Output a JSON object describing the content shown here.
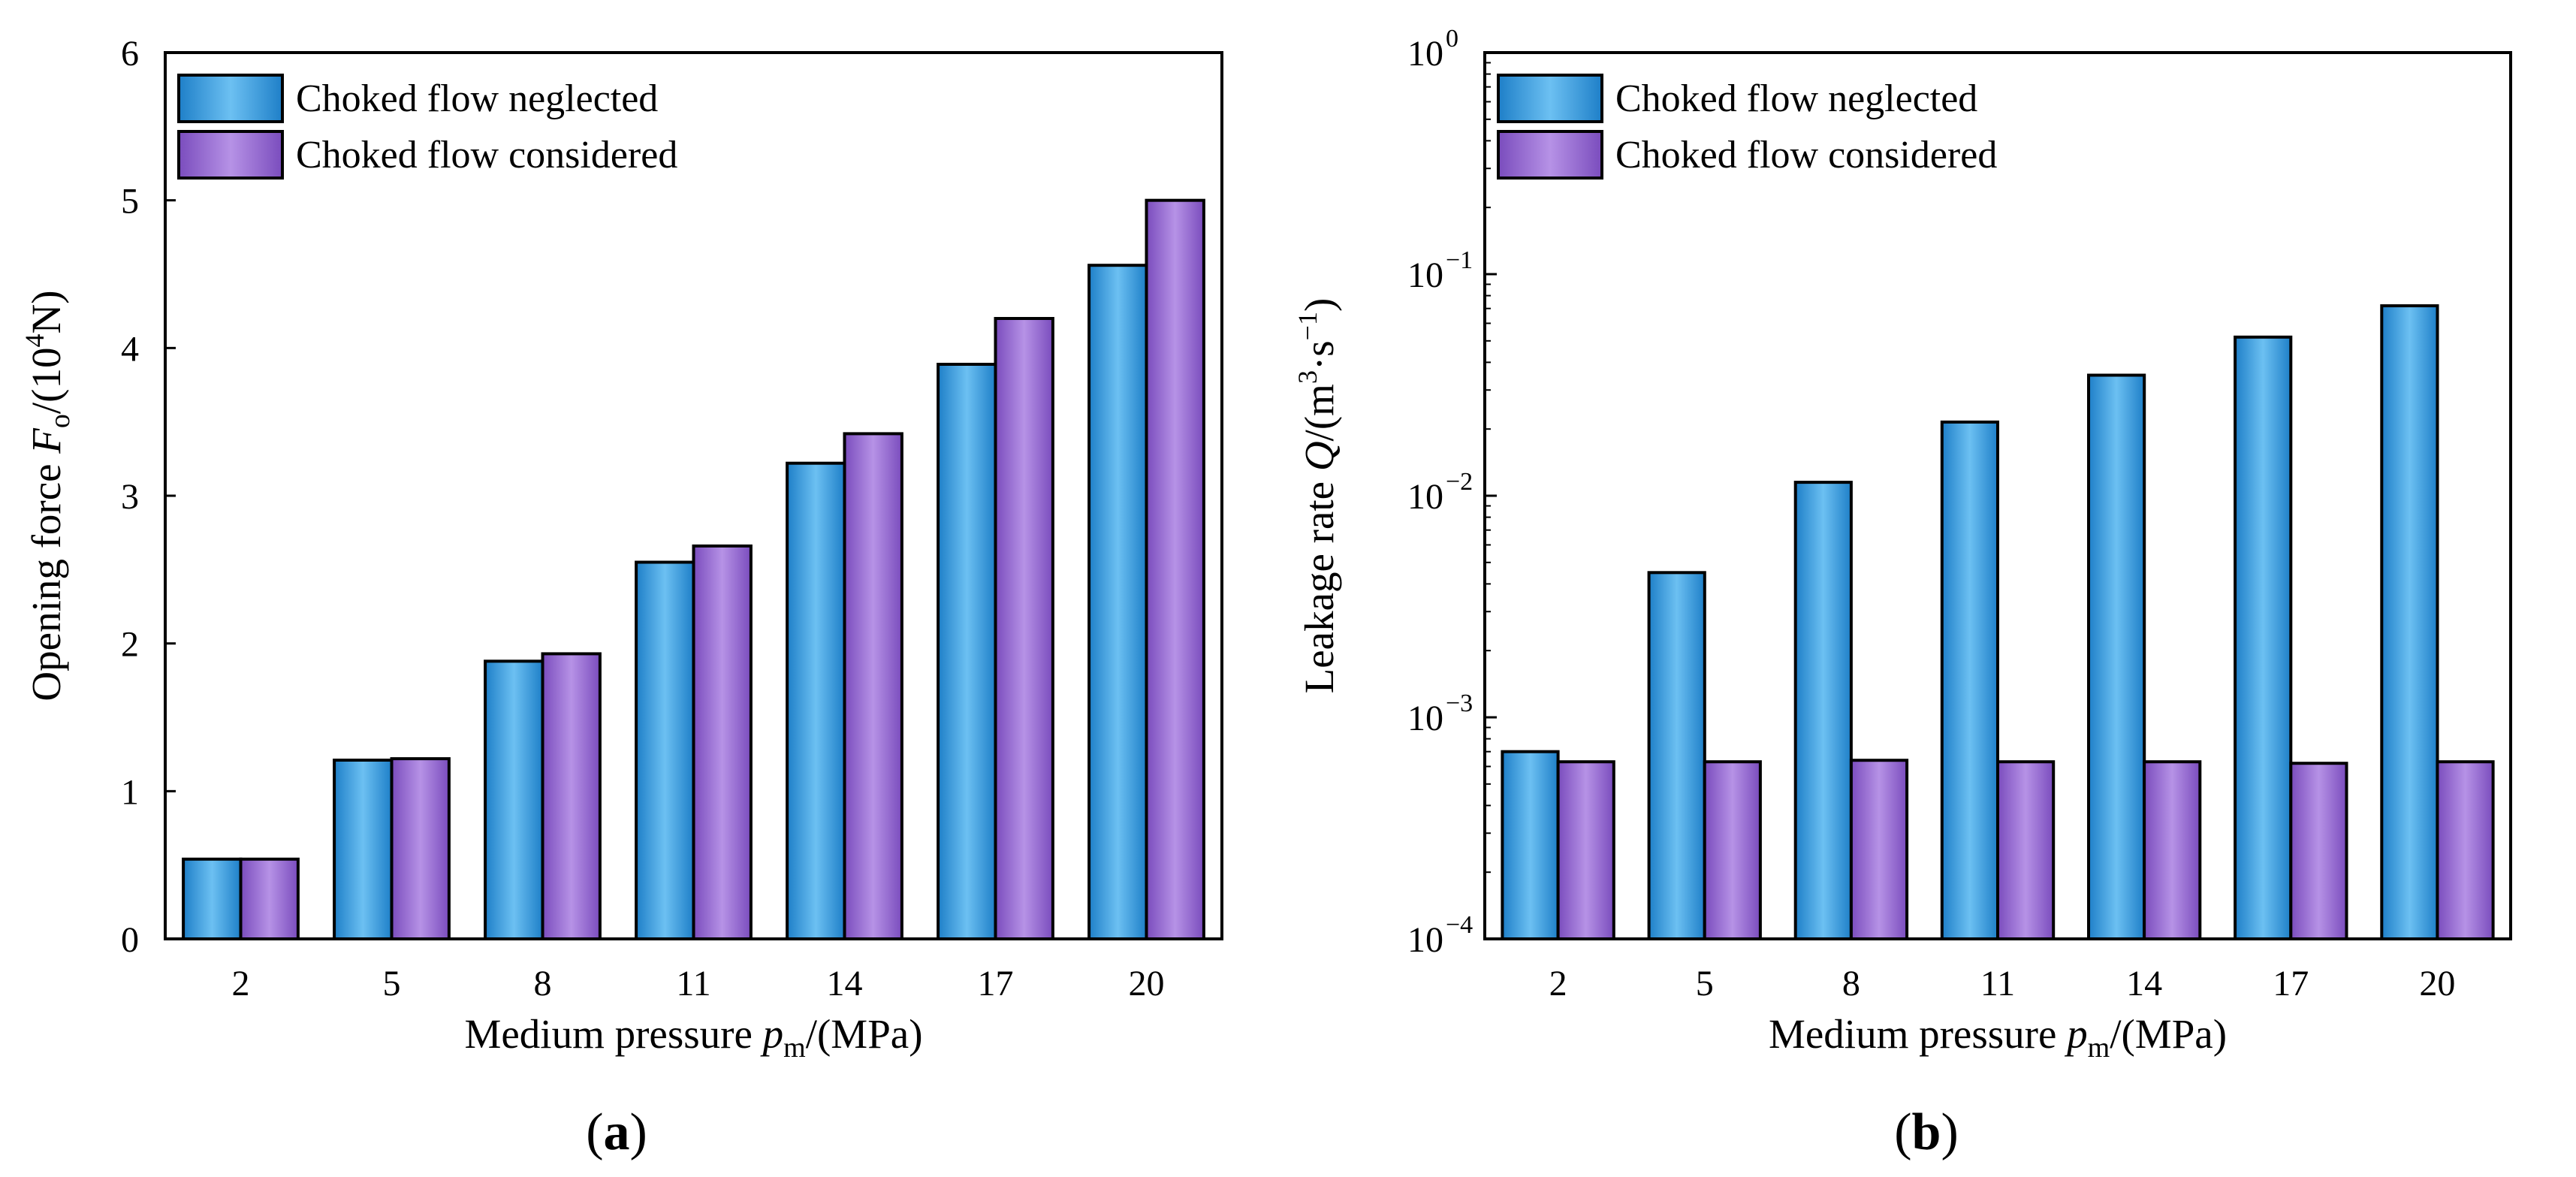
{
  "colors": {
    "series1_light": "#6cc0f2",
    "series1_dark": "#1e7fc8",
    "series2_light": "#b692e6",
    "series2_dark": "#7a4cbd"
  },
  "chart_data": [
    {
      "type": "bar",
      "panel_label": "a",
      "categories": [
        "2",
        "5",
        "8",
        "11",
        "14",
        "17",
        "20"
      ],
      "series": [
        {
          "name": "Choked flow neglected",
          "values": [
            0.54,
            1.21,
            1.88,
            2.55,
            3.22,
            3.89,
            4.56
          ]
        },
        {
          "name": "Choked flow considered",
          "values": [
            0.54,
            1.22,
            1.93,
            2.66,
            3.42,
            4.2,
            5.0
          ]
        }
      ],
      "xlabel": {
        "prefix": "Medium pressure ",
        "var": "p",
        "sub": "m",
        "suffix": "/(MPa)"
      },
      "ylabel": {
        "prefix": "Opening force ",
        "var": "F",
        "sub": "o",
        "mid": "/(10",
        "sup": "4",
        "suffix": "N)"
      },
      "ylim": [
        0,
        6
      ],
      "yticks": [
        "0",
        "1",
        "2",
        "3",
        "4",
        "5",
        "6"
      ],
      "scale": "linear",
      "legend_position": "top-left"
    },
    {
      "type": "bar",
      "panel_label": "b",
      "categories": [
        "2",
        "5",
        "8",
        "11",
        "14",
        "17",
        "20"
      ],
      "series": [
        {
          "name": "Choked flow neglected",
          "values": [
            0.0007,
            0.0045,
            0.0115,
            0.0215,
            0.035,
            0.052,
            0.072
          ]
        },
        {
          "name": "Choked flow considered",
          "values": [
            0.00063,
            0.00063,
            0.00064,
            0.00063,
            0.00063,
            0.00062,
            0.00063
          ]
        }
      ],
      "xlabel": {
        "prefix": "Medium pressure ",
        "var": "p",
        "sub": "m",
        "suffix": "/(MPa)"
      },
      "ylabel": {
        "prefix": "Leakage rate ",
        "var": "Q",
        "mid": "/(m",
        "sup": "3",
        "mid2": "·s",
        "sup2": "−1",
        "suffix": ")"
      },
      "ylim": [
        0.0001,
        1
      ],
      "yticks": [
        {
          "base": "10",
          "exp": "−4"
        },
        {
          "base": "10",
          "exp": "−3"
        },
        {
          "base": "10",
          "exp": "−2"
        },
        {
          "base": "10",
          "exp": "−1"
        },
        {
          "base": "10",
          "exp": "0"
        }
      ],
      "scale": "log",
      "legend_position": "top-left"
    }
  ]
}
